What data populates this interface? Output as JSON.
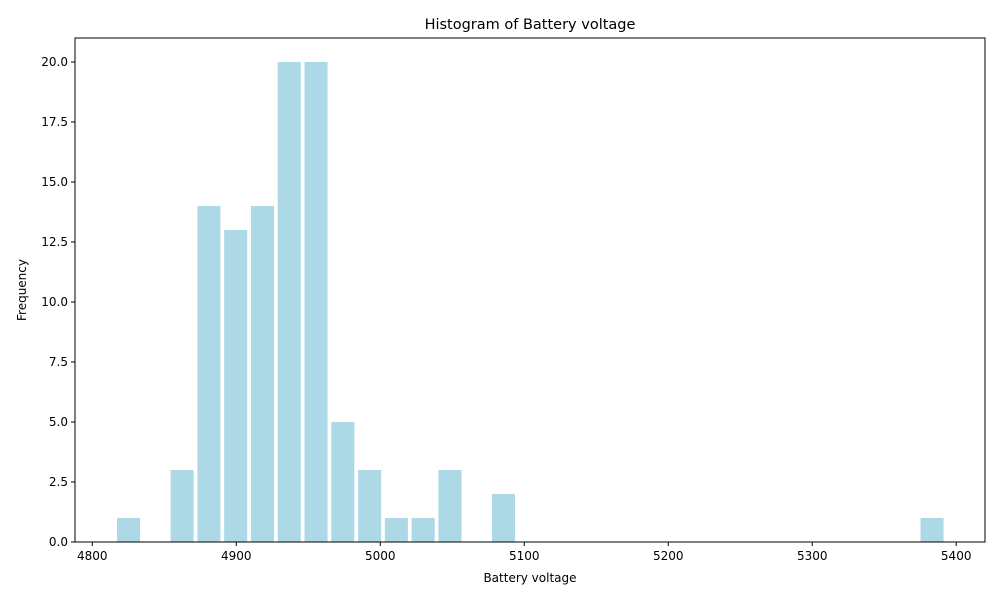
{
  "chart_data": {
    "type": "bar",
    "title": "Histogram of Battery voltage",
    "xlabel": "Battery voltage",
    "ylabel": "Frequency",
    "xlim": [
      4788,
      5420
    ],
    "ylim": [
      0,
      21
    ],
    "xticks": [
      4800,
      4900,
      5000,
      5100,
      5200,
      5300,
      5400
    ],
    "yticks": [
      0.0,
      2.5,
      5.0,
      7.5,
      10.0,
      12.5,
      15.0,
      17.5,
      20.0
    ],
    "ytick_labels": [
      "0.0",
      "2.5",
      "5.0",
      "7.5",
      "10.0",
      "12.5",
      "15.0",
      "17.5",
      "20.0"
    ],
    "bin_width": 18.6,
    "bar_width": 16,
    "bins": [
      {
        "x": 4825.2,
        "value": 1
      },
      {
        "x": 4862.4,
        "value": 3
      },
      {
        "x": 4881.0,
        "value": 14
      },
      {
        "x": 4899.6,
        "value": 13
      },
      {
        "x": 4918.2,
        "value": 14
      },
      {
        "x": 4936.8,
        "value": 20
      },
      {
        "x": 4955.4,
        "value": 20
      },
      {
        "x": 4974.0,
        "value": 5
      },
      {
        "x": 4992.6,
        "value": 3
      },
      {
        "x": 5011.2,
        "value": 1
      },
      {
        "x": 5029.8,
        "value": 1
      },
      {
        "x": 5048.4,
        "value": 3
      },
      {
        "x": 5085.6,
        "value": 2
      },
      {
        "x": 5383.2,
        "value": 1
      }
    ],
    "colors": {
      "bar": "#add8e6",
      "axis": "#000000"
    },
    "grid": false,
    "legend": "none"
  }
}
